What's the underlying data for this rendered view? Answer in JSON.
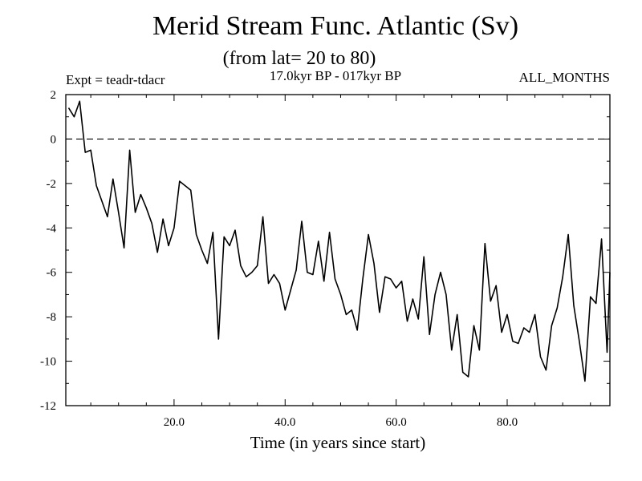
{
  "header": {
    "title": "Merid Stream Func. Atlantic (Sv)",
    "subtitle": "(from lat= 20 to 80)",
    "expt": "Expt = teadr-tdacr",
    "period": "17.0kyr BP - 017kyr BP",
    "months": "ALL_MONTHS"
  },
  "chart_data": {
    "type": "line",
    "title": "Merid Stream Func. Atlantic (Sv)",
    "subtitle": "(from lat= 20 to 80)",
    "xlabel": "Time (in years since start)",
    "ylabel": "",
    "xlim": [
      0.5,
      98.5
    ],
    "ylim": [
      -12,
      2
    ],
    "xticks": [
      20,
      40,
      60,
      80
    ],
    "xtick_labels": [
      "20.0",
      "40.0",
      "60.0",
      "80.0"
    ],
    "yticks": [
      2,
      0,
      -2,
      -4,
      -6,
      -8,
      -10,
      -12
    ],
    "ytick_labels": [
      "2",
      "0",
      "-2",
      "-4",
      "-6",
      "-8",
      "-10",
      "-12"
    ],
    "reference_line": {
      "y": 0,
      "style": "dashed"
    },
    "series": [
      {
        "name": "Merid Stream Func. Atlantic",
        "x": [
          1,
          2,
          3,
          4,
          5,
          6,
          7,
          8,
          9,
          10,
          11,
          12,
          13,
          14,
          15,
          16,
          17,
          18,
          19,
          20,
          21,
          22,
          23,
          24,
          25,
          26,
          27,
          28,
          29,
          30,
          31,
          32,
          33,
          34,
          35,
          36,
          37,
          38,
          39,
          40,
          41,
          42,
          43,
          44,
          45,
          46,
          47,
          48,
          49,
          50,
          51,
          52,
          53,
          54,
          55,
          56,
          57,
          58,
          59,
          60,
          61,
          62,
          63,
          64,
          65,
          66,
          67,
          68,
          69,
          70,
          71,
          72,
          73,
          74,
          75,
          76,
          77,
          78,
          79,
          80,
          81,
          82,
          83,
          84,
          85,
          86,
          87,
          88,
          89,
          90,
          91,
          92,
          93,
          94,
          95,
          96,
          97,
          98
        ],
        "values": [
          1.4,
          1.0,
          1.7,
          -0.6,
          -0.5,
          -2.1,
          -2.8,
          -3.5,
          -1.8,
          -3.3,
          -4.9,
          -0.5,
          -3.3,
          -2.5,
          -3.1,
          -3.8,
          -5.1,
          -3.6,
          -4.8,
          -4.0,
          -1.9,
          -2.1,
          -2.3,
          -4.3,
          -5.0,
          -5.6,
          -4.2,
          -9.0,
          -4.4,
          -4.8,
          -4.1,
          -5.7,
          -6.2,
          -6.0,
          -5.7,
          -3.5,
          -6.5,
          -6.1,
          -6.5,
          -7.7,
          -6.8,
          -5.9,
          -3.7,
          -6.0,
          -6.1,
          -4.6,
          -6.4,
          -4.2,
          -6.3,
          -7.0,
          -7.9,
          -7.7,
          -8.6,
          -6.3,
          -4.3,
          -5.6,
          -7.8,
          -6.2,
          -6.3,
          -6.7,
          -6.4,
          -8.2,
          -7.2,
          -8.1,
          -5.3,
          -8.8,
          -7.0,
          -6.0,
          -7.0,
          -9.5,
          -7.9,
          -10.5,
          -10.7,
          -8.4,
          -9.5,
          -4.7,
          -7.3,
          -6.6,
          -8.7,
          -7.9,
          -9.1,
          -9.2,
          -8.5,
          -8.7,
          -7.9,
          -9.8,
          -10.4,
          -8.4,
          -7.6,
          -6.2,
          -4.3,
          -7.5,
          -9.1,
          -10.9,
          -7.1,
          -7.4,
          -4.5,
          -9.6
        ]
      }
    ],
    "x_end": 98.5,
    "y_end": -6.0,
    "grid": false,
    "legend": "none"
  }
}
